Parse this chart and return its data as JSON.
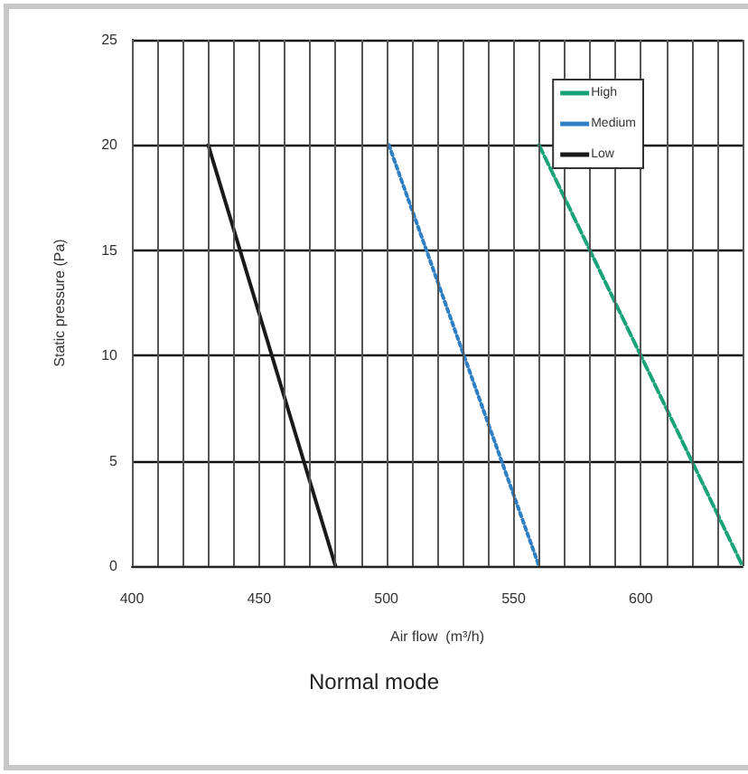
{
  "chart_data": {
    "type": "line",
    "title": "Normal mode",
    "xlabel": "Air flow  (m³/h)",
    "ylabel": "Static pressure (Pa)",
    "series": [
      {
        "name": "High",
        "color": "#1aa37a",
        "line_style": "dashed",
        "x": [
          560,
          640
        ],
        "values": [
          20,
          0
        ]
      },
      {
        "name": "Medium",
        "color": "#2f7fc4",
        "line_style": "dotted",
        "x": [
          501,
          560
        ],
        "values": [
          20,
          0
        ]
      },
      {
        "name": "Low",
        "color": "#1a1a1a",
        "line_style": "solid",
        "x": [
          430,
          480
        ],
        "values": [
          20,
          0
        ]
      }
    ],
    "xlim": [
      400,
      640
    ],
    "xticks": [
      400,
      {
        "value": 410,
        "label": null
      },
      {
        "value": 420,
        "label": null
      },
      {
        "value": 430,
        "label": null
      },
      {
        "value": 440,
        "label": null
      },
      450,
      {
        "value": 460,
        "label": null
      },
      {
        "value": 470,
        "label": null
      },
      {
        "value": 480,
        "label": null
      },
      {
        "value": 490,
        "label": null
      },
      500,
      {
        "value": 510,
        "label": null
      },
      {
        "value": 520,
        "label": null
      },
      {
        "value": 530,
        "label": null
      },
      {
        "value": 540,
        "label": null
      },
      550,
      {
        "value": 560,
        "label": null
      },
      {
        "value": 570,
        "label": null
      },
      {
        "value": 580,
        "label": null
      },
      {
        "value": 590,
        "label": null
      },
      600,
      {
        "value": 610,
        "label": null
      },
      {
        "value": 620,
        "label": null
      },
      {
        "value": 630,
        "label": null
      },
      {
        "value": 640,
        "label": null
      }
    ],
    "ylim": [
      0,
      25
    ],
    "yticks": [
      0,
      5,
      10,
      15,
      20,
      25
    ],
    "grid": true,
    "legend": "top right",
    "marker": "none"
  }
}
